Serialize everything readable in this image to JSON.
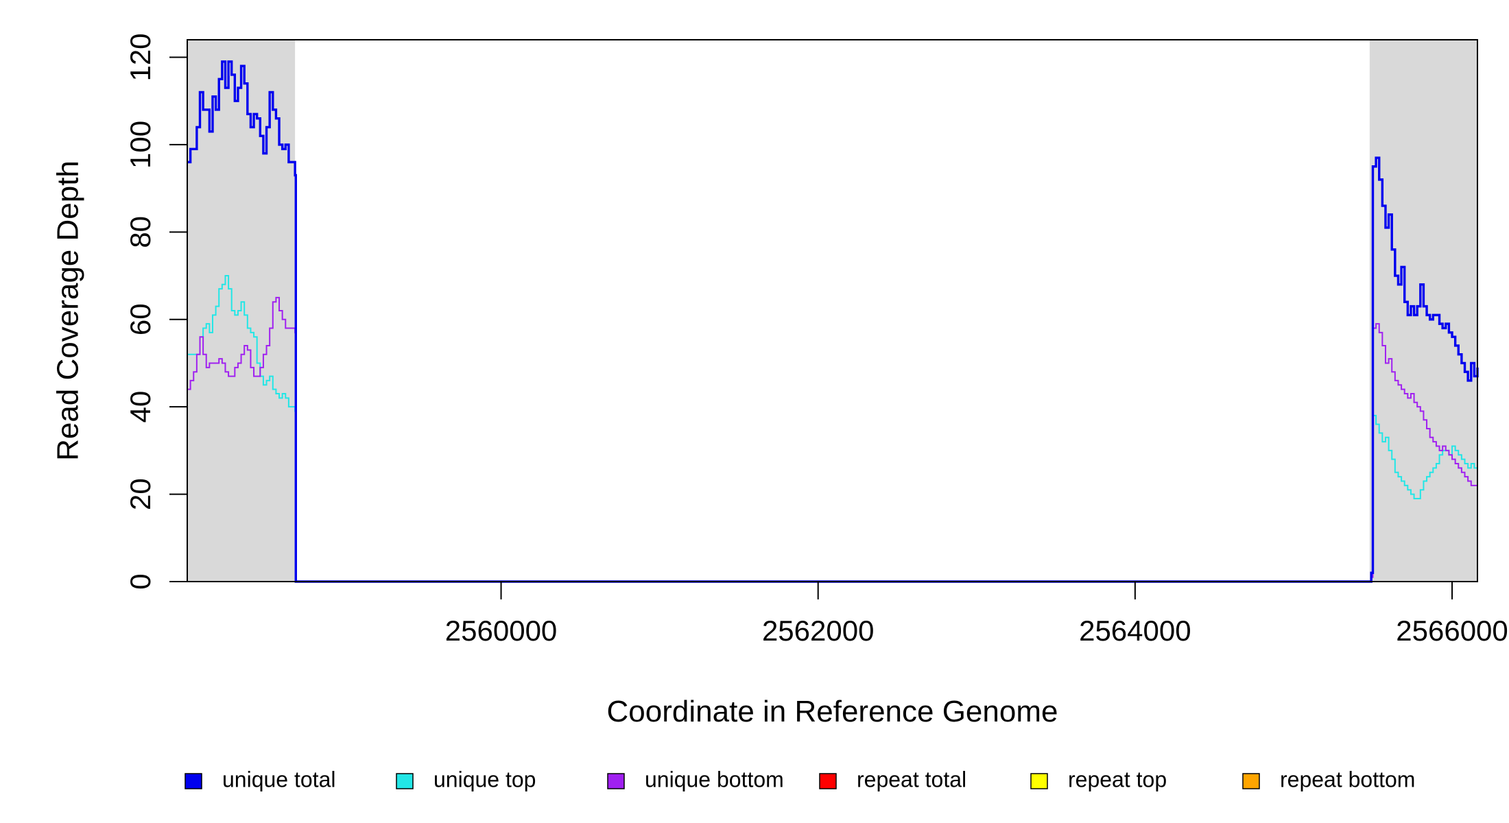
{
  "chart_data": {
    "type": "line",
    "title": "",
    "xlabel": "Coordinate in Reference Genome",
    "ylabel": "Read Coverage Depth",
    "xlim": [
      2558020,
      2566160
    ],
    "ylim": [
      0,
      124
    ],
    "xticks": [
      2560000,
      2562000,
      2564000,
      2566000
    ],
    "yticks": [
      0,
      20,
      40,
      60,
      80,
      100,
      120
    ],
    "shaded_regions": [
      {
        "x0": 2558020,
        "x1": 2558700,
        "color": "#d9d9d9"
      },
      {
        "x0": 2565480,
        "x1": 2566160,
        "color": "#d9d9d9"
      }
    ],
    "legend_placement": "bottom",
    "grid": false,
    "series": [
      {
        "name": "unique total",
        "color": "#0000ee",
        "width": 3.4,
        "x": [
          2558020,
          2558040,
          2558060,
          2558080,
          2558100,
          2558120,
          2558140,
          2558160,
          2558180,
          2558200,
          2558220,
          2558240,
          2558260,
          2558280,
          2558300,
          2558320,
          2558340,
          2558360,
          2558380,
          2558400,
          2558420,
          2558440,
          2558460,
          2558480,
          2558500,
          2558520,
          2558540,
          2558560,
          2558580,
          2558600,
          2558620,
          2558640,
          2558660,
          2558680,
          2558700,
          2558705,
          2558800,
          2559500,
          2560500,
          2561500,
          2562500,
          2563500,
          2564500,
          2565400,
          2565450,
          2565490,
          2565500,
          2565520,
          2565540,
          2565560,
          2565580,
          2565600,
          2565620,
          2565640,
          2565660,
          2565680,
          2565700,
          2565720,
          2565740,
          2565760,
          2565780,
          2565800,
          2565820,
          2565840,
          2565860,
          2565880,
          2565900,
          2565920,
          2565940,
          2565960,
          2565980,
          2566000,
          2566020,
          2566040,
          2566060,
          2566080,
          2566100,
          2566120,
          2566140,
          2566160
        ],
        "y": [
          96,
          99,
          99,
          104,
          112,
          108,
          108,
          103,
          111,
          108,
          115,
          119,
          113,
          119,
          116,
          110,
          113,
          118,
          114,
          107,
          104,
          107,
          106,
          102,
          98,
          104,
          112,
          108,
          106,
          100,
          99,
          100,
          96,
          96,
          93,
          0,
          0,
          0,
          0,
          0,
          0,
          0,
          0,
          0,
          0,
          2,
          95,
          97,
          92,
          86,
          81,
          84,
          76,
          70,
          68,
          72,
          64,
          61,
          63,
          61,
          63,
          68,
          63,
          61,
          60,
          61,
          61,
          59,
          58,
          59,
          57,
          56,
          54,
          52,
          50,
          48,
          46,
          50,
          47,
          49
        ]
      },
      {
        "name": "unique top",
        "color": "#22e6e6",
        "width": 2,
        "x": [
          2558020,
          2558040,
          2558060,
          2558080,
          2558100,
          2558120,
          2558140,
          2558160,
          2558180,
          2558200,
          2558220,
          2558240,
          2558260,
          2558280,
          2558300,
          2558320,
          2558340,
          2558360,
          2558380,
          2558400,
          2558420,
          2558440,
          2558460,
          2558480,
          2558500,
          2558520,
          2558540,
          2558560,
          2558580,
          2558600,
          2558620,
          2558640,
          2558660,
          2558680,
          2558700,
          2558705,
          2558800,
          2559500,
          2560500,
          2561500,
          2562500,
          2563500,
          2564500,
          2565400,
          2565450,
          2565490,
          2565500,
          2565520,
          2565540,
          2565560,
          2565580,
          2565600,
          2565620,
          2565640,
          2565660,
          2565680,
          2565700,
          2565720,
          2565740,
          2565760,
          2565780,
          2565800,
          2565820,
          2565840,
          2565860,
          2565880,
          2565900,
          2565920,
          2565940,
          2565960,
          2565980,
          2566000,
          2566020,
          2566040,
          2566060,
          2566080,
          2566100,
          2566120,
          2566140,
          2566160
        ],
        "y": [
          52,
          52,
          52,
          52,
          56,
          58,
          59,
          57,
          61,
          63,
          67,
          68,
          70,
          67,
          62,
          61,
          62,
          64,
          61,
          58,
          57,
          56,
          50,
          47,
          45,
          46,
          47,
          44,
          43,
          42,
          43,
          42,
          40,
          40,
          39,
          0,
          0,
          0,
          0,
          0,
          0,
          0,
          0,
          0,
          0,
          1,
          38,
          36,
          34,
          32,
          33,
          30,
          28,
          25,
          24,
          23,
          22,
          21,
          20,
          19,
          19,
          21,
          23,
          24,
          25,
          26,
          27,
          29,
          30,
          30,
          29,
          31,
          30,
          29,
          28,
          27,
          26,
          27,
          26,
          25
        ]
      },
      {
        "name": "unique bottom",
        "color": "#a020f0",
        "width": 2,
        "x": [
          2558020,
          2558040,
          2558060,
          2558080,
          2558100,
          2558120,
          2558140,
          2558160,
          2558180,
          2558200,
          2558220,
          2558240,
          2558260,
          2558280,
          2558300,
          2558320,
          2558340,
          2558360,
          2558380,
          2558400,
          2558420,
          2558440,
          2558460,
          2558480,
          2558500,
          2558520,
          2558540,
          2558560,
          2558580,
          2558600,
          2558620,
          2558640,
          2558660,
          2558680,
          2558700,
          2558705,
          2558800,
          2559500,
          2560500,
          2561500,
          2562500,
          2563500,
          2564500,
          2565400,
          2565450,
          2565490,
          2565500,
          2565520,
          2565540,
          2565560,
          2565580,
          2565600,
          2565620,
          2565640,
          2565660,
          2565680,
          2565700,
          2565720,
          2565740,
          2565760,
          2565780,
          2565800,
          2565820,
          2565840,
          2565860,
          2565880,
          2565900,
          2565920,
          2565940,
          2565960,
          2565980,
          2566000,
          2566020,
          2566040,
          2566060,
          2566080,
          2566100,
          2566120,
          2566140,
          2566160
        ],
        "y": [
          44,
          46,
          48,
          52,
          56,
          52,
          49,
          50,
          50,
          50,
          51,
          50,
          48,
          47,
          47,
          49,
          50,
          52,
          54,
          53,
          49,
          47,
          47,
          49,
          52,
          54,
          58,
          64,
          65,
          62,
          60,
          58,
          58,
          58,
          57,
          0,
          0,
          0,
          0,
          0,
          0,
          0,
          0,
          0,
          0,
          1,
          58,
          59,
          57,
          54,
          50,
          51,
          48,
          46,
          45,
          44,
          43,
          42,
          43,
          41,
          40,
          39,
          37,
          35,
          33,
          32,
          31,
          30,
          31,
          30,
          29,
          28,
          27,
          26,
          25,
          24,
          23,
          22,
          22,
          22
        ]
      },
      {
        "name": "repeat total",
        "color": "#ff0000",
        "width": 2,
        "x": [
          2558020,
          2566160
        ],
        "y": [
          0,
          0
        ]
      },
      {
        "name": "repeat top",
        "color": "#ffff00",
        "width": 2,
        "x": [
          2558020,
          2566160
        ],
        "y": [
          0,
          0
        ]
      },
      {
        "name": "repeat bottom",
        "color": "#ffa500",
        "width": 2,
        "x": [
          2558020,
          2566160
        ],
        "y": [
          0,
          0
        ]
      }
    ]
  }
}
